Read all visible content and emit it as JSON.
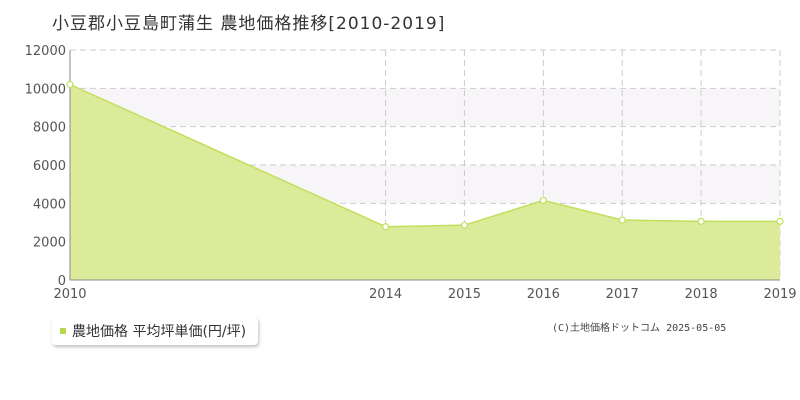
{
  "chart_data": {
    "type": "area",
    "title": "小豆郡小豆島町蒲生  農地価格推移[2010-2019]",
    "x": [
      2010,
      2014,
      2015,
      2016,
      2017,
      2018,
      2019
    ],
    "series": [
      {
        "name": "農地価格 平均坪単価(円/坪)",
        "values": [
          10200,
          2780,
          2860,
          4150,
          3130,
          3060,
          3060
        ]
      }
    ],
    "xlabel": "",
    "ylabel": "",
    "ylim": [
      0,
      12000
    ],
    "yticks": [
      0,
      2000,
      4000,
      6000,
      8000,
      10000,
      12000
    ],
    "xticks": [
      2010,
      2014,
      2015,
      2016,
      2017,
      2018,
      2019
    ],
    "grid": true,
    "legend_position": "bottom-left",
    "colors": {
      "fill": "#dbeb99",
      "line": "#c2df5c",
      "marker_fill": "#ffffff",
      "band": "#f7f5f8",
      "grid": "#cccccc",
      "axis": "#888888",
      "legend_swatch": "#b5d94a"
    }
  },
  "credit": "(C)土地価格ドットコム 2025-05-05"
}
